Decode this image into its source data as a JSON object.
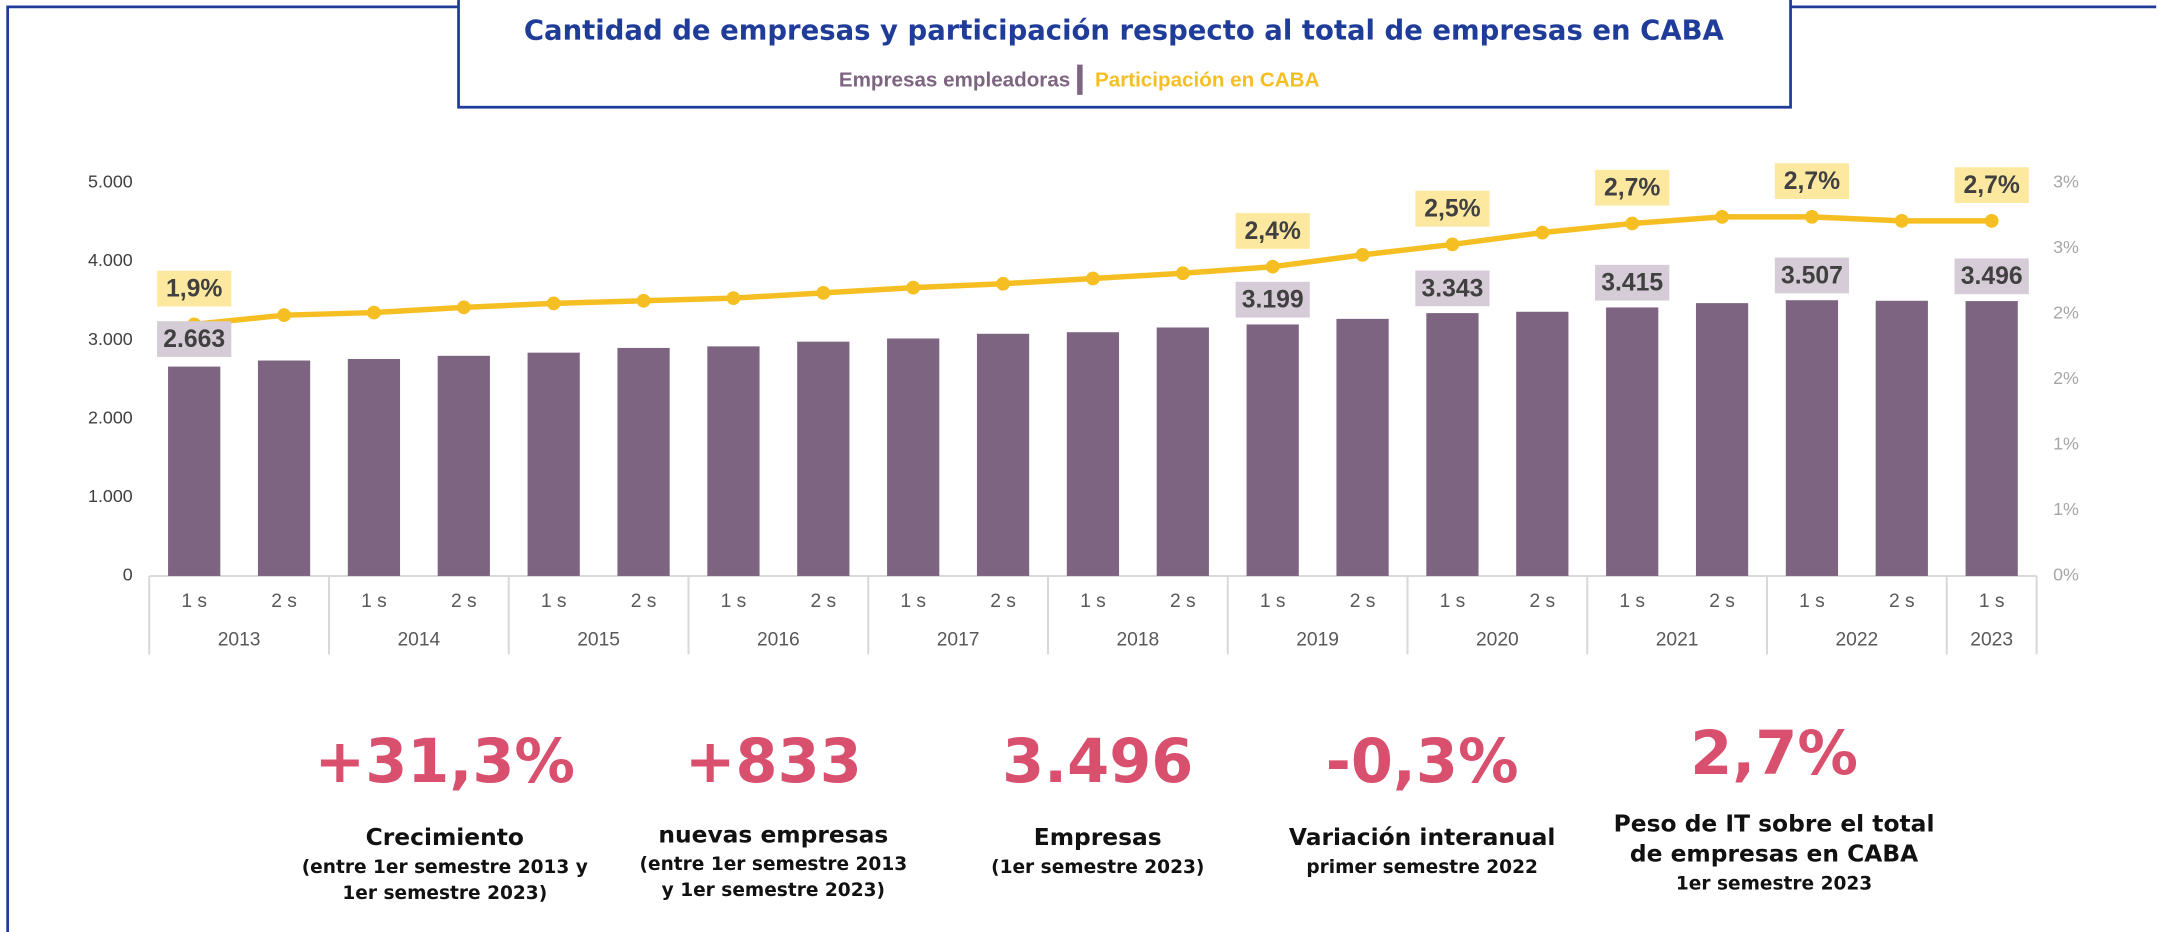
{
  "chart_data": {
    "type": "bar_line",
    "subtitle": "Cantidad de empresas  y participación respecto al total de empresas en CABA",
    "categories": [
      "1 s",
      "2 s",
      "1 s",
      "2 s",
      "1 s",
      "2 s",
      "1 s",
      "2 s",
      "1 s",
      "2 s",
      "1 s",
      "2 s",
      "1 s",
      "2 s",
      "1 s",
      "2 s",
      "1 s",
      "2 s",
      "1 s",
      "2 s",
      "1 s"
    ],
    "years": [
      "2013",
      "2014",
      "2015",
      "2016",
      "2017",
      "2018",
      "2019",
      "2020",
      "2021",
      "2022",
      "2023"
    ],
    "series": [
      {
        "name": "Empresas empleadoras",
        "color": "#7d6480",
        "type": "bar",
        "values": [
          2663,
          2740,
          2760,
          2800,
          2840,
          2900,
          2920,
          2980,
          3020,
          3080,
          3100,
          3160,
          3199,
          3270,
          3343,
          3360,
          3415,
          3470,
          3507,
          3500,
          3496
        ],
        "value_labels": [
          "2.663",
          null,
          null,
          null,
          null,
          null,
          null,
          null,
          null,
          null,
          null,
          null,
          "3.199",
          null,
          "3.343",
          null,
          "3.415",
          null,
          "3.507",
          null,
          "3.496"
        ]
      },
      {
        "name": "Participación en CABA",
        "color": "#f5bf23",
        "type": "line",
        "axis": "y2",
        "values": [
          1.92,
          1.99,
          2.01,
          2.05,
          2.08,
          2.1,
          2.12,
          2.16,
          2.2,
          2.23,
          2.27,
          2.31,
          2.36,
          2.45,
          2.53,
          2.62,
          2.69,
          2.74,
          2.74,
          2.71,
          2.71
        ],
        "value_labels": [
          "1,9%",
          null,
          null,
          null,
          null,
          null,
          null,
          null,
          null,
          null,
          null,
          null,
          "2,4%",
          null,
          "2,5%",
          null,
          "2,7%",
          null,
          "2,7%",
          null,
          "2,7%"
        ]
      }
    ],
    "ylim": [
      0,
      5000
    ],
    "yticks": [
      0,
      {
        "value": 1000,
        "label": "1.000"
      },
      {
        "value": 2000,
        "label": "2.000"
      },
      {
        "value": 3000,
        "label": "3.000"
      },
      {
        "value": 4000,
        "label": "4.000"
      },
      {
        "value": 5000,
        "label": "5.000"
      }
    ],
    "y2lim": [
      0,
      3
    ],
    "y2ticks": [
      {
        "value": 0,
        "label": "0%"
      },
      {
        "value": 0.5,
        "label": "1%"
      },
      {
        "value": 1,
        "label": "1%"
      },
      {
        "value": 1.5,
        "label": "2%"
      },
      {
        "value": 2,
        "label": "2%"
      },
      {
        "value": 2.5,
        "label": "3%"
      },
      {
        "value": 3,
        "label": "3%"
      }
    ]
  },
  "kpis": [
    {
      "value": "+31,3%",
      "label": [
        "Crecimiento"
      ],
      "sub": [
        "(entre 1er semestre 2013 y",
        "1er semestre 2023)"
      ]
    },
    {
      "value": "+833",
      "label": [
        "nuevas empresas"
      ],
      "sub": [
        "(entre 1er semestre 2013",
        "y 1er semestre 2023)"
      ]
    },
    {
      "value": "3.496",
      "label": [
        "Empresas"
      ],
      "sub": [
        "(1er semestre 2023)"
      ]
    },
    {
      "value": "-0,3%",
      "label": [
        "Variación interanual"
      ],
      "sub": [
        "primer semestre 2022"
      ]
    },
    {
      "value": "2,7%",
      "label": [
        "Peso de IT sobre el total",
        "de empresas en CABA"
      ],
      "sub": [
        "1er semestre 2023"
      ]
    }
  ]
}
